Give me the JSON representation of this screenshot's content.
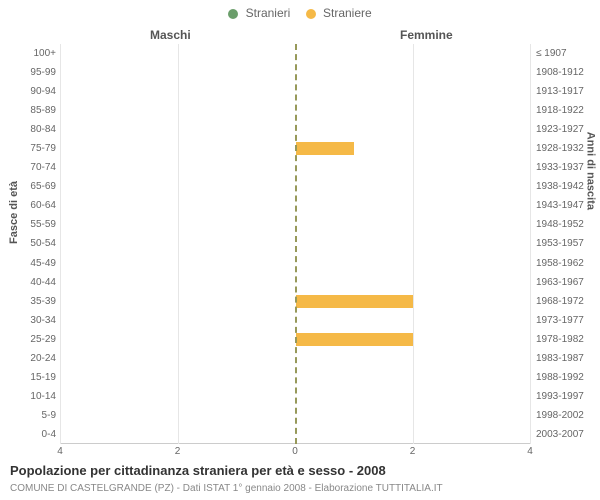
{
  "legend": {
    "male": {
      "label": "Stranieri",
      "color": "#6b9e6b"
    },
    "female": {
      "label": "Straniere",
      "color": "#f5b947"
    }
  },
  "columns": {
    "left": "Maschi",
    "right": "Femmine"
  },
  "axis_left_title": "Fasce di età",
  "axis_right_title": "Anni di nascita",
  "xmax": 4,
  "xtick_step": 2,
  "xticks_left": [
    "4",
    "2",
    "0"
  ],
  "xticks_right": [
    "0",
    "2",
    "4"
  ],
  "center_line_color": "#97995a",
  "grid_color": "#e6e6e6",
  "bar_width_ratio": 0.68,
  "background_color": "#ffffff",
  "rows": [
    {
      "age": "100+",
      "birth": "≤ 1907",
      "m": 0,
      "f": 0
    },
    {
      "age": "95-99",
      "birth": "1908-1912",
      "m": 0,
      "f": 0
    },
    {
      "age": "90-94",
      "birth": "1913-1917",
      "m": 0,
      "f": 0
    },
    {
      "age": "85-89",
      "birth": "1918-1922",
      "m": 0,
      "f": 0
    },
    {
      "age": "80-84",
      "birth": "1923-1927",
      "m": 0,
      "f": 0
    },
    {
      "age": "75-79",
      "birth": "1928-1932",
      "m": 0,
      "f": 1
    },
    {
      "age": "70-74",
      "birth": "1933-1937",
      "m": 0,
      "f": 0
    },
    {
      "age": "65-69",
      "birth": "1938-1942",
      "m": 0,
      "f": 0
    },
    {
      "age": "60-64",
      "birth": "1943-1947",
      "m": 0,
      "f": 0
    },
    {
      "age": "55-59",
      "birth": "1948-1952",
      "m": 0,
      "f": 0
    },
    {
      "age": "50-54",
      "birth": "1953-1957",
      "m": 0,
      "f": 0
    },
    {
      "age": "45-49",
      "birth": "1958-1962",
      "m": 0,
      "f": 0
    },
    {
      "age": "40-44",
      "birth": "1963-1967",
      "m": 0,
      "f": 0
    },
    {
      "age": "35-39",
      "birth": "1968-1972",
      "m": 0,
      "f": 2
    },
    {
      "age": "30-34",
      "birth": "1973-1977",
      "m": 0,
      "f": 0
    },
    {
      "age": "25-29",
      "birth": "1978-1982",
      "m": 0,
      "f": 2
    },
    {
      "age": "20-24",
      "birth": "1983-1987",
      "m": 0,
      "f": 0
    },
    {
      "age": "15-19",
      "birth": "1988-1992",
      "m": 0,
      "f": 0
    },
    {
      "age": "10-14",
      "birth": "1993-1997",
      "m": 0,
      "f": 0
    },
    {
      "age": "5-9",
      "birth": "1998-2002",
      "m": 0,
      "f": 0
    },
    {
      "age": "0-4",
      "birth": "2003-2007",
      "m": 0,
      "f": 0
    }
  ],
  "caption": "Popolazione per cittadinanza straniera per età e sesso - 2008",
  "subcaption": "COMUNE DI CASTELGRANDE (PZ) - Dati ISTAT 1° gennaio 2008 - Elaborazione TUTTITALIA.IT",
  "fonts": {
    "legend_size": 12,
    "tick_size": 10,
    "axis_title_size": 11,
    "caption_size": 13,
    "subcaption_size": 10
  }
}
